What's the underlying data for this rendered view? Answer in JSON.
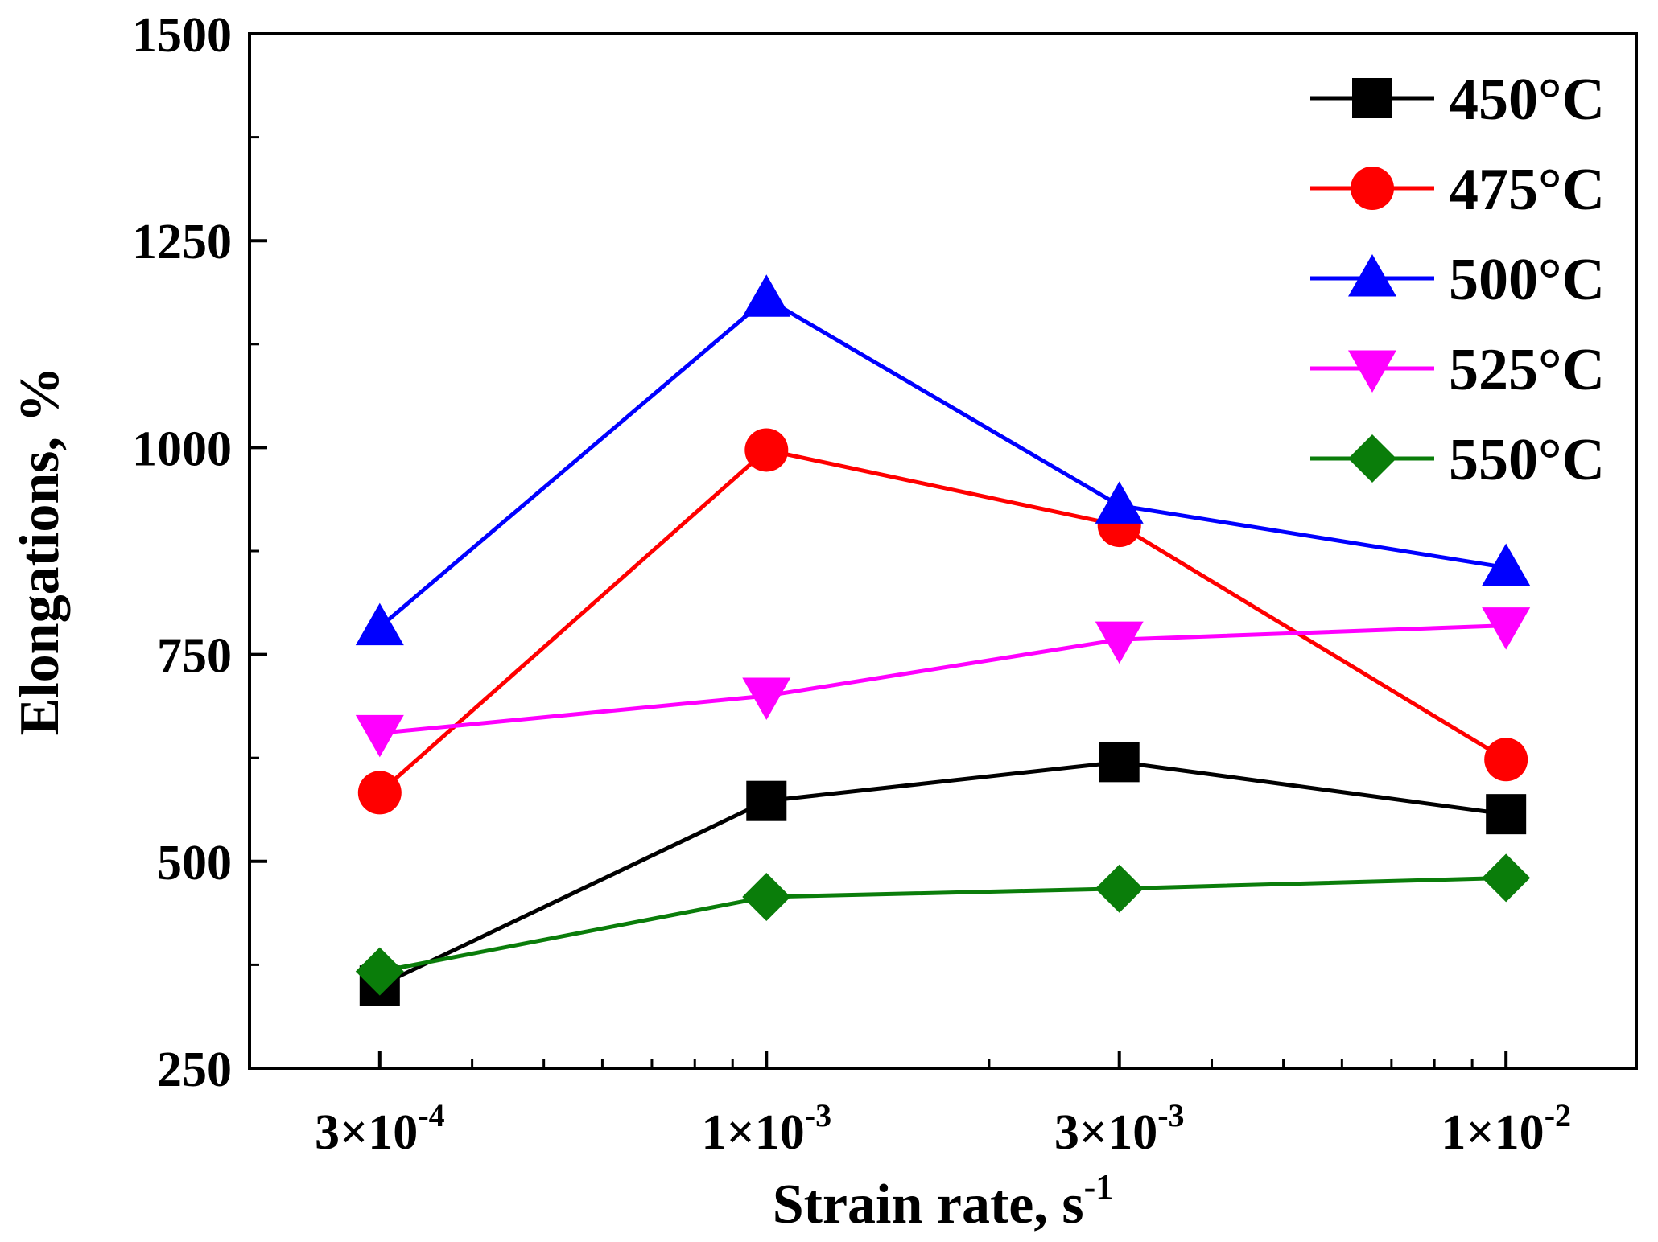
{
  "chart_data": {
    "type": "line",
    "xscale": "log",
    "x": [
      0.0003,
      0.001,
      0.003,
      0.01
    ],
    "categories": [
      "3×10",
      "1×10",
      "3×10",
      "1×10"
    ],
    "category_exponents": [
      "-4",
      "-3",
      "-3",
      "-2"
    ],
    "xlim": [
      0.0002,
      0.015
    ],
    "ylim": [
      250,
      1500
    ],
    "yticks": [
      "250",
      "500",
      "750",
      "1000",
      "1250",
      "1500"
    ],
    "xlabel": "Strain rate, s",
    "xlabel_exponent": "-1",
    "ylabel": "Elongations, %",
    "legend_position": "top-right",
    "series": [
      {
        "name": "450°C",
        "color": "#000000",
        "marker": "square",
        "values": [
          350,
          573,
          620,
          557
        ]
      },
      {
        "name": "475°C",
        "color": "#ff0000",
        "marker": "circle",
        "values": [
          583,
          997,
          906,
          623
        ]
      },
      {
        "name": "500°C",
        "color": "#0000ff",
        "marker": "triangle-up",
        "values": [
          783,
          1180,
          930,
          855
        ]
      },
      {
        "name": "525°C",
        "color": "#ff00ff",
        "marker": "triangle-down",
        "values": [
          655,
          700,
          768,
          785
        ]
      },
      {
        "name": "550°C",
        "color": "#0a7d0a",
        "marker": "diamond",
        "values": [
          367,
          457,
          467,
          480
        ]
      }
    ]
  }
}
